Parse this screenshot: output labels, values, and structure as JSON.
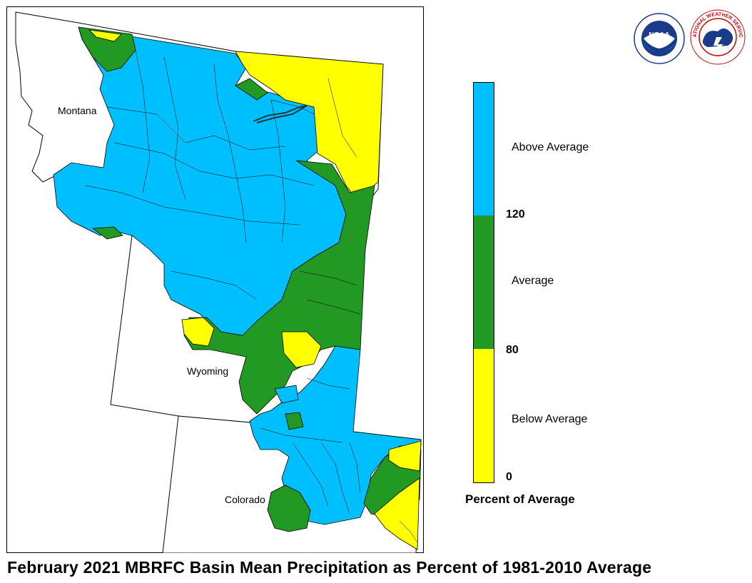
{
  "states": {
    "montana": "Montana",
    "wyoming": "Wyoming",
    "colorado": "Colorado"
  },
  "legend": {
    "above_label": "Above Average",
    "average_label": "Average",
    "below_label": "Below Average",
    "tick_high": "120",
    "tick_mid": "80",
    "tick_low": "0",
    "title": "Percent of Average",
    "colors": {
      "above": "#00bfff",
      "average": "#229922",
      "below": "#ffff00"
    }
  },
  "logos": {
    "noaa": "NOAA",
    "nws": "NATIONAL WEATHER SERVICE"
  },
  "caption": "February 2021 MBRFC Basin Mean Precipitation as Percent of 1981-2010 Average"
}
